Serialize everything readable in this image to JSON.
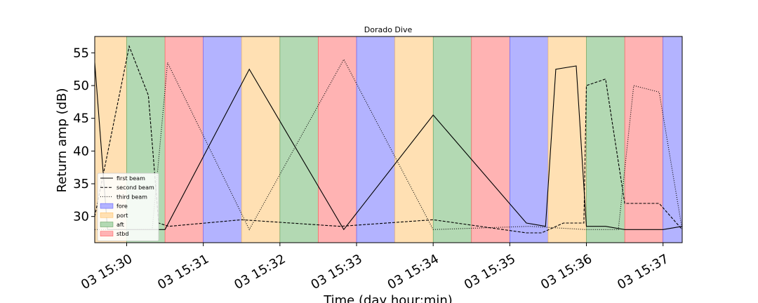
{
  "chart_data": {
    "type": "line",
    "title": "Dorado Dive",
    "xlabel": "Time (day hour:min)",
    "ylabel": "Return amp (dB)",
    "xlim": [
      "03 15:29:35",
      "03 15:37:15"
    ],
    "ylim": [
      26,
      57.5
    ],
    "x_ticks": [
      "03 15:30",
      "03 15:31",
      "03 15:32",
      "03 15:33",
      "03 15:34",
      "03 15:35",
      "03 15:36",
      "03 15:37"
    ],
    "y_ticks": [
      30,
      35,
      40,
      45,
      50,
      55
    ],
    "bands": [
      {
        "category": "port",
        "start": "03 15:29:35",
        "end": "03 15:30:00"
      },
      {
        "category": "aft",
        "start": "03 15:30:00",
        "end": "03 15:30:30"
      },
      {
        "category": "stbd",
        "start": "03 15:30:30",
        "end": "03 15:31:00"
      },
      {
        "category": "fore",
        "start": "03 15:31:00",
        "end": "03 15:31:30"
      },
      {
        "category": "port",
        "start": "03 15:31:30",
        "end": "03 15:32:00"
      },
      {
        "category": "aft",
        "start": "03 15:32:00",
        "end": "03 15:32:30"
      },
      {
        "category": "stbd",
        "start": "03 15:32:30",
        "end": "03 15:33:00"
      },
      {
        "category": "fore",
        "start": "03 15:33:00",
        "end": "03 15:33:30"
      },
      {
        "category": "port",
        "start": "03 15:33:30",
        "end": "03 15:34:00"
      },
      {
        "category": "aft",
        "start": "03 15:34:00",
        "end": "03 15:34:30"
      },
      {
        "category": "stbd",
        "start": "03 15:34:30",
        "end": "03 15:35:00"
      },
      {
        "category": "fore",
        "start": "03 15:35:00",
        "end": "03 15:35:30"
      },
      {
        "category": "port",
        "start": "03 15:35:30",
        "end": "03 15:36:00"
      },
      {
        "category": "aft",
        "start": "03 15:36:00",
        "end": "03 15:36:30"
      },
      {
        "category": "stbd",
        "start": "03 15:36:30",
        "end": "03 15:37:00"
      },
      {
        "category": "fore",
        "start": "03 15:37:00",
        "end": "03 15:37:15"
      }
    ],
    "band_colors": {
      "fore": "#b3b3ff",
      "port": "#ffe0b3",
      "aft": "#b3d9b3",
      "stbd": "#ffb3b3"
    },
    "series": [
      {
        "name": "first beam",
        "style": "solid",
        "points": [
          [
            "03 15:29:35",
            53.5
          ],
          [
            "03 15:29:45",
            28.0
          ],
          [
            "03 15:30:30",
            28.0
          ],
          [
            "03 15:31:36",
            52.5
          ],
          [
            "03 15:32:50",
            28.0
          ],
          [
            "03 15:34:00",
            45.5
          ],
          [
            "03 15:35:13",
            29.0
          ],
          [
            "03 15:35:28",
            28.5
          ],
          [
            "03 15:35:36",
            52.5
          ],
          [
            "03 15:35:52",
            53.0
          ],
          [
            "03 15:36:00",
            28.5
          ],
          [
            "03 15:36:15",
            28.5
          ],
          [
            "03 15:36:30",
            28.0
          ],
          [
            "03 15:37:00",
            28.0
          ],
          [
            "03 15:37:15",
            28.5
          ]
        ]
      },
      {
        "name": "second beam",
        "style": "dashed",
        "points": [
          [
            "03 15:29:35",
            30.0
          ],
          [
            "03 15:30:02",
            56.0
          ],
          [
            "03 15:30:17",
            48.5
          ],
          [
            "03 15:30:25",
            29.0
          ],
          [
            "03 15:30:33",
            28.5
          ],
          [
            "03 15:31:30",
            29.5
          ],
          [
            "03 15:32:47",
            28.5
          ],
          [
            "03 15:34:00",
            29.5
          ],
          [
            "03 15:35:13",
            27.5
          ],
          [
            "03 15:35:25",
            27.5
          ],
          [
            "03 15:35:42",
            29.0
          ],
          [
            "03 15:35:58",
            29.0
          ],
          [
            "03 15:36:00",
            50.0
          ],
          [
            "03 15:36:15",
            51.0
          ],
          [
            "03 15:36:30",
            32.0
          ],
          [
            "03 15:36:57",
            32.0
          ],
          [
            "03 15:37:15",
            28.0
          ]
        ]
      },
      {
        "name": "third beam",
        "style": "dotted",
        "points": [
          [
            "03 15:29:35",
            28.0
          ],
          [
            "03 15:30:00",
            28.0
          ],
          [
            "03 15:30:20",
            28.0
          ],
          [
            "03 15:30:32",
            53.5
          ],
          [
            "03 15:31:36",
            28.0
          ],
          [
            "03 15:32:50",
            54.0
          ],
          [
            "03 15:34:00",
            28.0
          ],
          [
            "03 15:35:15",
            28.5
          ],
          [
            "03 15:36:00",
            28.0
          ],
          [
            "03 15:36:25",
            28.0
          ],
          [
            "03 15:36:37",
            50.0
          ],
          [
            "03 15:36:57",
            49.0
          ],
          [
            "03 15:37:15",
            28.0
          ]
        ]
      }
    ],
    "legend": {
      "placement": "lower-left",
      "entries": [
        {
          "label": "first beam",
          "kind": "line",
          "style": "solid"
        },
        {
          "label": "second beam",
          "kind": "line",
          "style": "dashed"
        },
        {
          "label": "third beam",
          "kind": "line",
          "style": "dotted"
        },
        {
          "label": "fore",
          "kind": "patch",
          "category": "fore"
        },
        {
          "label": "port",
          "kind": "patch",
          "category": "port"
        },
        {
          "label": "aft",
          "kind": "patch",
          "category": "aft"
        },
        {
          "label": "stbd",
          "kind": "patch",
          "category": "stbd"
        }
      ]
    },
    "grid": false
  }
}
